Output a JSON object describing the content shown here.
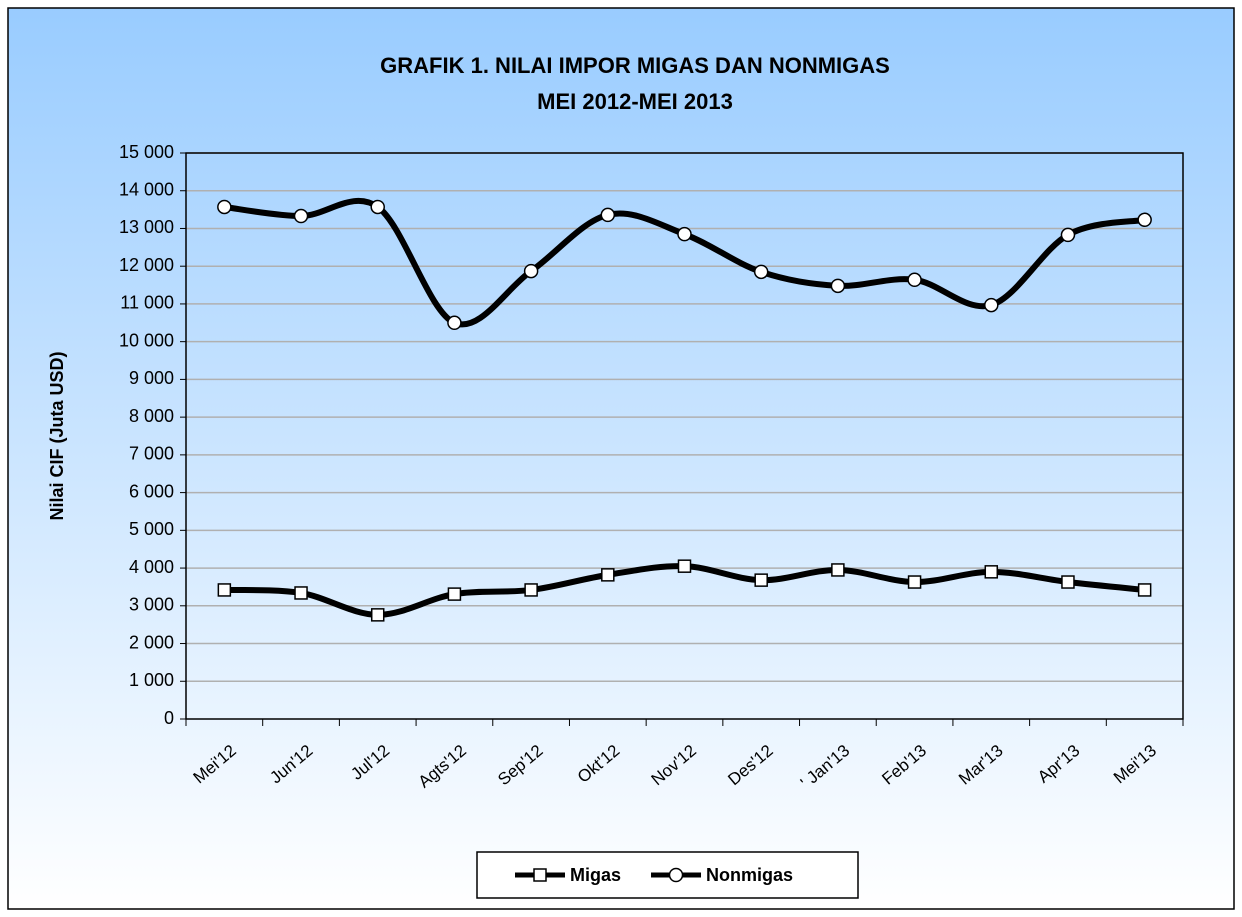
{
  "chart_data": {
    "type": "line",
    "title": "GRAFIK 1. NILAI IMPOR MIGAS DAN NONMIGAS",
    "subtitle": "MEI 2012-MEI 2013",
    "y_label": "Nilai CIF (Juta USD)",
    "categories": [
      "Mei'12",
      "Jun'12",
      "Jul'12",
      "Agts'12",
      "Sep'12",
      "Okt'12",
      "Nov'12",
      "Des'12",
      "' Jan'13",
      "Feb'13",
      "Mar'13",
      "Apr'13",
      "Mei'13"
    ],
    "series": [
      {
        "name": "Migas",
        "color": "#000000",
        "marker": "square",
        "values": [
          3420,
          3340,
          2760,
          3310,
          3420,
          3820,
          4050,
          3680,
          3950,
          3630,
          3900,
          3630,
          3420
        ]
      },
      {
        "name": "Nonmigas",
        "color": "#000000",
        "marker": "circle",
        "values": [
          13570,
          13330,
          13570,
          10500,
          11870,
          13360,
          12850,
          11850,
          11480,
          11640,
          10970,
          12830,
          13230
        ]
      }
    ],
    "ylim": [
      0,
      15000
    ],
    "yticks": [
      0,
      {
        "value": 1000,
        "label": "1 000"
      },
      {
        "value": 2000,
        "label": "2 000"
      },
      {
        "value": 3000,
        "label": "3 000"
      },
      {
        "value": 4000,
        "label": "4 000"
      },
      {
        "value": 5000,
        "label": "5 000"
      },
      {
        "value": 6000,
        "label": "6 000"
      },
      {
        "value": 7000,
        "label": "7 000"
      },
      {
        "value": 8000,
        "label": "8 000"
      },
      {
        "value": 9000,
        "label": "9 000"
      },
      {
        "value": 10000,
        "label": "10 000"
      },
      {
        "value": 11000,
        "label": "11 000"
      },
      {
        "value": 12000,
        "label": "12 000"
      },
      {
        "value": 13000,
        "label": "13 000"
      },
      {
        "value": 14000,
        "label": "14 000"
      },
      {
        "value": 15000,
        "label": "15 000"
      }
    ],
    "grid": true,
    "smooth": true,
    "legend": "bottom"
  }
}
